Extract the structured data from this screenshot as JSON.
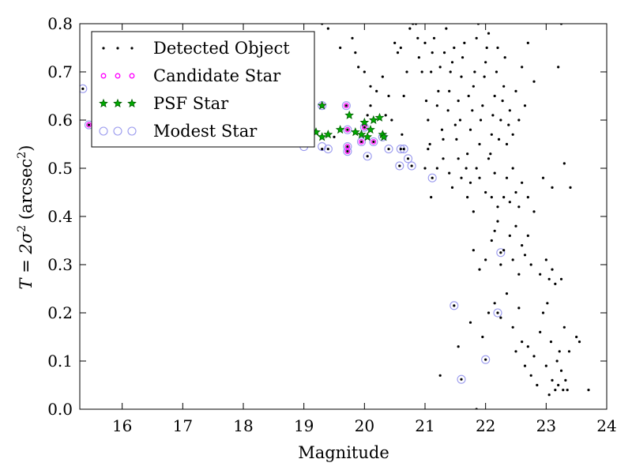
{
  "chart_data": {
    "type": "scatter",
    "xlabel": "Magnitude",
    "ylabel_main": "T = 2σ",
    "ylabel_sup": "2",
    "ylabel_unit": "(arcsec",
    "ylabel_unit_sup": "2",
    "ylabel_close": ")",
    "xlim": [
      15.3,
      24
    ],
    "ylim": [
      0.0,
      0.8
    ],
    "xticks": [
      16,
      17,
      18,
      19,
      20,
      21,
      22,
      23,
      24
    ],
    "yticks": [
      0.0,
      0.1,
      0.2,
      0.3,
      0.4,
      0.5,
      0.6,
      0.7,
      0.8
    ],
    "xtick_labels": [
      "16",
      "17",
      "18",
      "19",
      "20",
      "21",
      "22",
      "23",
      "24"
    ],
    "ytick_labels": [
      "0.0",
      "0.1",
      "0.2",
      "0.3",
      "0.4",
      "0.5",
      "0.6",
      "0.7",
      "0.8"
    ],
    "grid": false,
    "legend_position": "top-left",
    "series": [
      {
        "name": "Detected Object",
        "marker": "dot",
        "color": "#000000",
        "points": [
          [
            15.35,
            0.665
          ],
          [
            15.45,
            0.59
          ],
          [
            15.9,
            0.575
          ],
          [
            19.05,
            0.59
          ],
          [
            19.5,
            0.565
          ],
          [
            19.7,
            0.63
          ],
          [
            19.72,
            0.545
          ],
          [
            19.72,
            0.535
          ],
          [
            19.72,
            0.58
          ],
          [
            19.95,
            0.555
          ],
          [
            20.0,
            0.585
          ],
          [
            20.05,
            0.525
          ],
          [
            20.15,
            0.555
          ],
          [
            20.4,
            0.54
          ],
          [
            20.58,
            0.505
          ],
          [
            20.6,
            0.54
          ],
          [
            20.65,
            0.54
          ],
          [
            20.72,
            0.52
          ],
          [
            20.78,
            0.505
          ],
          [
            21.12,
            0.48
          ],
          [
            21.48,
            0.215
          ],
          [
            21.6,
            0.062
          ],
          [
            22.0,
            0.103
          ],
          [
            22.2,
            0.2
          ],
          [
            22.25,
            0.325
          ],
          [
            19.3,
            0.54
          ],
          [
            19.4,
            0.54
          ],
          [
            19.1,
            0.57
          ],
          [
            19.3,
            0.8
          ],
          [
            19.4,
            0.79
          ],
          [
            19.6,
            0.75
          ],
          [
            19.8,
            0.77
          ],
          [
            19.85,
            0.74
          ],
          [
            19.9,
            0.71
          ],
          [
            20.0,
            0.7
          ],
          [
            20.05,
            0.61
          ],
          [
            20.1,
            0.63
          ],
          [
            20.1,
            0.67
          ],
          [
            20.2,
            0.66
          ],
          [
            20.3,
            0.69
          ],
          [
            20.35,
            0.61
          ],
          [
            20.4,
            0.65
          ],
          [
            20.45,
            0.6
          ],
          [
            20.5,
            0.76
          ],
          [
            20.55,
            0.74
          ],
          [
            20.6,
            0.75
          ],
          [
            20.62,
            0.57
          ],
          [
            20.65,
            0.65
          ],
          [
            20.7,
            0.7
          ],
          [
            20.75,
            0.79
          ],
          [
            20.8,
            0.8
          ],
          [
            20.85,
            0.8
          ],
          [
            20.88,
            0.77
          ],
          [
            20.9,
            0.73
          ],
          [
            20.95,
            0.7
          ],
          [
            21.0,
            0.76
          ],
          [
            21.02,
            0.64
          ],
          [
            21.05,
            0.6
          ],
          [
            21.05,
            0.54
          ],
          [
            21.08,
            0.55
          ],
          [
            21.1,
            0.7
          ],
          [
            21.12,
            0.74
          ],
          [
            21.15,
            0.77
          ],
          [
            21.2,
            0.63
          ],
          [
            21.22,
            0.66
          ],
          [
            21.25,
            0.71
          ],
          [
            21.28,
            0.58
          ],
          [
            21.3,
            0.56
          ],
          [
            21.32,
            0.74
          ],
          [
            21.35,
            0.79
          ],
          [
            21.38,
            0.62
          ],
          [
            21.4,
            0.66
          ],
          [
            21.42,
            0.7
          ],
          [
            21.45,
            0.72
          ],
          [
            21.48,
            0.75
          ],
          [
            21.5,
            0.59
          ],
          [
            21.52,
            0.56
          ],
          [
            21.55,
            0.64
          ],
          [
            21.58,
            0.6
          ],
          [
            21.6,
            0.69
          ],
          [
            21.62,
            0.73
          ],
          [
            21.65,
            0.76
          ],
          [
            21.68,
            0.5
          ],
          [
            21.7,
            0.53
          ],
          [
            21.72,
            0.65
          ],
          [
            21.75,
            0.58
          ],
          [
            21.78,
            0.62
          ],
          [
            21.8,
            0.67
          ],
          [
            21.82,
            0.7
          ],
          [
            21.85,
            0.77
          ],
          [
            21.88,
            0.8
          ],
          [
            21.9,
            0.55
          ],
          [
            21.92,
            0.6
          ],
          [
            21.95,
            0.63
          ],
          [
            21.98,
            0.69
          ],
          [
            22.0,
            0.72
          ],
          [
            22.02,
            0.75
          ],
          [
            22.05,
            0.78
          ],
          [
            22.08,
            0.53
          ],
          [
            22.1,
            0.57
          ],
          [
            22.12,
            0.61
          ],
          [
            22.15,
            0.65
          ],
          [
            22.18,
            0.7
          ],
          [
            22.2,
            0.75
          ],
          [
            22.22,
            0.56
          ],
          [
            22.25,
            0.6
          ],
          [
            22.28,
            0.64
          ],
          [
            22.3,
            0.67
          ],
          [
            22.32,
            0.73
          ],
          [
            22.35,
            0.55
          ],
          [
            22.38,
            0.59
          ],
          [
            22.4,
            0.62
          ],
          [
            22.45,
            0.57
          ],
          [
            22.5,
            0.66
          ],
          [
            22.55,
            0.6
          ],
          [
            22.6,
            0.71
          ],
          [
            22.65,
            0.63
          ],
          [
            22.7,
            0.76
          ],
          [
            22.8,
            0.68
          ],
          [
            23.2,
            0.71
          ],
          [
            23.25,
            0.8
          ],
          [
            23.3,
            0.51
          ],
          [
            21.0,
            0.5
          ],
          [
            21.1,
            0.44
          ],
          [
            21.2,
            0.5
          ],
          [
            21.3,
            0.52
          ],
          [
            21.4,
            0.49
          ],
          [
            21.45,
            0.46
          ],
          [
            21.55,
            0.52
          ],
          [
            21.6,
            0.48
          ],
          [
            21.7,
            0.44
          ],
          [
            21.75,
            0.47
          ],
          [
            21.8,
            0.41
          ],
          [
            21.85,
            0.5
          ],
          [
            21.9,
            0.48
          ],
          [
            22.0,
            0.45
          ],
          [
            22.05,
            0.52
          ],
          [
            22.1,
            0.44
          ],
          [
            22.15,
            0.49
          ],
          [
            22.2,
            0.42
          ],
          [
            22.3,
            0.44
          ],
          [
            22.35,
            0.48
          ],
          [
            22.4,
            0.43
          ],
          [
            22.45,
            0.5
          ],
          [
            22.5,
            0.45
          ],
          [
            22.55,
            0.42
          ],
          [
            22.6,
            0.47
          ],
          [
            22.7,
            0.44
          ],
          [
            22.8,
            0.41
          ],
          [
            22.95,
            0.48
          ],
          [
            23.1,
            0.46
          ],
          [
            23.4,
            0.46
          ],
          [
            21.8,
            0.33
          ],
          [
            21.9,
            0.29
          ],
          [
            22.0,
            0.31
          ],
          [
            22.1,
            0.35
          ],
          [
            22.15,
            0.37
          ],
          [
            22.2,
            0.39
          ],
          [
            22.25,
            0.3
          ],
          [
            22.3,
            0.33
          ],
          [
            22.4,
            0.36
          ],
          [
            22.45,
            0.31
          ],
          [
            22.5,
            0.38
          ],
          [
            22.55,
            0.28
          ],
          [
            22.6,
            0.34
          ],
          [
            22.65,
            0.32
          ],
          [
            22.7,
            0.36
          ],
          [
            22.75,
            0.3
          ],
          [
            22.9,
            0.28
          ],
          [
            23.0,
            0.31
          ],
          [
            23.05,
            0.27
          ],
          [
            23.1,
            0.29
          ],
          [
            23.15,
            0.26
          ],
          [
            23.25,
            0.27
          ],
          [
            21.55,
            0.13
          ],
          [
            21.75,
            0.18
          ],
          [
            21.95,
            0.15
          ],
          [
            22.05,
            0.2
          ],
          [
            22.15,
            0.22
          ],
          [
            22.25,
            0.19
          ],
          [
            22.35,
            0.24
          ],
          [
            22.45,
            0.17
          ],
          [
            22.5,
            0.12
          ],
          [
            22.55,
            0.21
          ],
          [
            22.6,
            0.14
          ],
          [
            22.65,
            0.09
          ],
          [
            22.7,
            0.13
          ],
          [
            22.75,
            0.07
          ],
          [
            22.8,
            0.11
          ],
          [
            22.85,
            0.05
          ],
          [
            22.9,
            0.16
          ],
          [
            22.95,
            0.2
          ],
          [
            23.0,
            0.09
          ],
          [
            23.02,
            0.22
          ],
          [
            23.05,
            0.03
          ],
          [
            23.08,
            0.14
          ],
          [
            23.1,
            0.06
          ],
          [
            23.15,
            0.04
          ],
          [
            23.18,
            0.1
          ],
          [
            23.2,
            0.05
          ],
          [
            23.22,
            0.12
          ],
          [
            23.25,
            0.08
          ],
          [
            23.28,
            0.04
          ],
          [
            23.3,
            0.17
          ],
          [
            23.32,
            0.06
          ],
          [
            23.35,
            0.04
          ],
          [
            23.38,
            0.12
          ],
          [
            23.5,
            0.15
          ],
          [
            23.55,
            0.14
          ],
          [
            23.7,
            0.04
          ],
          [
            21.85,
            0.0
          ],
          [
            21.25,
            0.07
          ]
        ]
      },
      {
        "name": "Candidate Star",
        "marker": "small-circle",
        "color": "#ff00ff",
        "points": [
          [
            15.45,
            0.59
          ],
          [
            19.7,
            0.63
          ],
          [
            19.72,
            0.58
          ],
          [
            19.72,
            0.545
          ],
          [
            19.72,
            0.535
          ],
          [
            19.95,
            0.555
          ],
          [
            20.0,
            0.585
          ],
          [
            20.15,
            0.555
          ],
          [
            19.3,
            0.63
          ]
        ]
      },
      {
        "name": "PSF Star",
        "marker": "star",
        "color": "#00aa00",
        "points": [
          [
            19.1,
            0.59
          ],
          [
            19.2,
            0.575
          ],
          [
            19.3,
            0.63
          ],
          [
            19.4,
            0.57
          ],
          [
            19.6,
            0.58
          ],
          [
            19.75,
            0.61
          ],
          [
            19.85,
            0.575
          ],
          [
            19.95,
            0.57
          ],
          [
            20.0,
            0.595
          ],
          [
            20.05,
            0.565
          ],
          [
            20.1,
            0.58
          ],
          [
            20.15,
            0.6
          ],
          [
            20.25,
            0.605
          ],
          [
            20.3,
            0.57
          ],
          [
            20.32,
            0.565
          ],
          [
            19.3,
            0.565
          ]
        ]
      },
      {
        "name": "Modest Star",
        "marker": "open-circle",
        "color": "#9999ee",
        "points": [
          [
            15.35,
            0.665
          ],
          [
            15.45,
            0.59
          ],
          [
            15.9,
            0.575
          ],
          [
            19.0,
            0.545
          ],
          [
            19.3,
            0.545
          ],
          [
            19.4,
            0.54
          ],
          [
            19.7,
            0.63
          ],
          [
            19.72,
            0.545
          ],
          [
            19.72,
            0.535
          ],
          [
            19.72,
            0.58
          ],
          [
            19.95,
            0.555
          ],
          [
            20.0,
            0.585
          ],
          [
            20.05,
            0.525
          ],
          [
            20.15,
            0.555
          ],
          [
            20.4,
            0.54
          ],
          [
            20.58,
            0.505
          ],
          [
            20.6,
            0.54
          ],
          [
            20.65,
            0.54
          ],
          [
            20.72,
            0.52
          ],
          [
            20.78,
            0.505
          ],
          [
            21.12,
            0.48
          ],
          [
            21.48,
            0.215
          ],
          [
            21.6,
            0.062
          ],
          [
            22.0,
            0.103
          ],
          [
            22.2,
            0.2
          ],
          [
            22.25,
            0.325
          ],
          [
            19.3,
            0.63
          ],
          [
            20.3,
            0.565
          ]
        ]
      }
    ]
  }
}
